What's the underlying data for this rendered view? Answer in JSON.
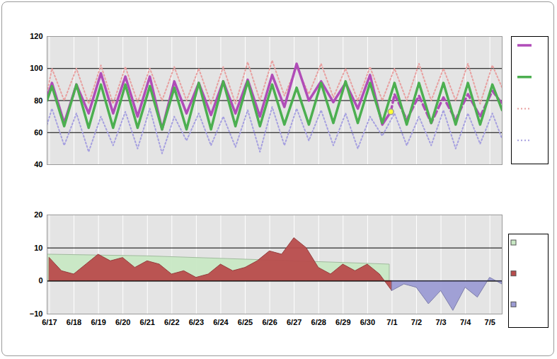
{
  "chart_data": [
    {
      "type": "line",
      "xlim": [
        -0.1,
        18.5
      ],
      "xticks": [
        {
          "value": 0,
          "label": "6/17"
        },
        {
          "value": 1,
          "label": "6/18"
        },
        {
          "value": 2,
          "label": "6/19"
        },
        {
          "value": 3,
          "label": "6/20"
        },
        {
          "value": 4,
          "label": "6/21"
        },
        {
          "value": 5,
          "label": "6/22"
        },
        {
          "value": 6,
          "label": "6/23"
        },
        {
          "value": 7,
          "label": "6/24"
        },
        {
          "value": 8,
          "label": "6/25"
        },
        {
          "value": 9,
          "label": "6/26"
        },
        {
          "value": 10,
          "label": "6/27"
        },
        {
          "value": 11,
          "label": "6/28"
        },
        {
          "value": 12,
          "label": "6/29"
        },
        {
          "value": 13,
          "label": "6/30"
        },
        {
          "value": 14,
          "label": "7/1"
        },
        {
          "value": 15,
          "label": "7/2"
        },
        {
          "value": 16,
          "label": "7/3"
        },
        {
          "value": 17,
          "label": "7/4"
        },
        {
          "value": 18,
          "label": "7/5"
        }
      ],
      "ylim": [
        40,
        120
      ],
      "yticks": [
        40,
        60,
        80,
        100,
        120
      ],
      "grid": true,
      "tick_labels": "y",
      "legend": "right",
      "series": [
        {
          "type": "line",
          "color": "#e8a0a0",
          "line_style": "dotted",
          "x": [
            -0.1,
            0.1,
            0.6,
            1.1,
            1.6,
            2.1,
            2.6,
            3.1,
            3.6,
            4.1,
            4.6,
            5.1,
            5.6,
            6.1,
            6.6,
            7.1,
            7.6,
            8.1,
            8.6,
            9.1,
            9.6,
            10.1,
            10.6,
            11.1,
            11.6,
            12.1,
            12.6,
            13.1,
            13.6,
            14.1,
            14.6,
            15.1,
            15.6,
            16.1,
            16.6,
            17.1,
            17.6,
            18.1,
            18.5
          ],
          "values": [
            85,
            100,
            80,
            100,
            78,
            102,
            78,
            101,
            79,
            100,
            80,
            101,
            80,
            100,
            78,
            101,
            78,
            104,
            80,
            105,
            83,
            101,
            84,
            103,
            82,
            100,
            80,
            101,
            80,
            100,
            80,
            103,
            80,
            100,
            80,
            103,
            78,
            102,
            88
          ]
        },
        {
          "type": "line",
          "color": "#a6a0e0",
          "line_style": "dotted",
          "x": [
            -0.1,
            0.1,
            0.6,
            1.1,
            1.6,
            2.1,
            2.6,
            3.1,
            3.6,
            4.1,
            4.6,
            5.1,
            5.6,
            6.1,
            6.6,
            7.1,
            7.6,
            8.1,
            8.6,
            9.1,
            9.6,
            10.1,
            10.6,
            11.1,
            11.6,
            12.1,
            12.6,
            13.1,
            13.6,
            14.1,
            14.6,
            15.1,
            15.6,
            16.1,
            16.6,
            17.1,
            17.6,
            18.1,
            18.5
          ],
          "values": [
            65,
            75,
            52,
            72,
            48,
            70,
            52,
            73,
            50,
            75,
            47,
            70,
            55,
            72,
            52,
            70,
            51,
            74,
            48,
            76,
            52,
            75,
            55,
            74,
            52,
            72,
            50,
            70,
            58,
            72,
            52,
            70,
            52,
            74,
            50,
            72,
            53,
            72,
            56
          ]
        },
        {
          "type": "line",
          "color": "#b04cb8",
          "line_style": "solid",
          "x": [
            -0.1,
            0.1,
            0.6,
            1.1,
            1.6,
            2.1,
            2.6,
            3.1,
            3.6,
            4.1,
            4.6,
            5.1,
            5.6,
            6.1,
            6.6,
            7.1,
            7.6,
            8.1,
            8.6,
            9.1,
            9.6,
            10.1,
            10.6,
            11.1,
            11.6,
            12.1,
            12.6,
            13.1,
            13.6,
            13.95
          ],
          "values": [
            82,
            91,
            66,
            90,
            72,
            97,
            72,
            95,
            70,
            95,
            62,
            92,
            72,
            91,
            71,
            92,
            72,
            93,
            70,
            96,
            76,
            103,
            80,
            92,
            79,
            91,
            75,
            96,
            65,
            73
          ]
        },
        {
          "type": "line",
          "color": "#b04cb8",
          "line_style": "dashed",
          "x": [
            13.95,
            14.1,
            14.6,
            15.1,
            15.6,
            16.1,
            16.6,
            17.1,
            17.6,
            18.1,
            18.5
          ],
          "values": [
            73,
            84,
            68,
            83,
            66,
            82,
            68,
            84,
            70,
            86,
            78
          ]
        },
        {
          "type": "line",
          "color": "#4caf50",
          "line_style": "solid",
          "x": [
            -0.1,
            0.1,
            0.6,
            1.1,
            1.6,
            2.1,
            2.6,
            3.1,
            3.6,
            4.1,
            4.6,
            5.1,
            5.6,
            6.1,
            6.6,
            7.1,
            7.6,
            8.1,
            8.6,
            9.1,
            9.6,
            10.1,
            10.6,
            11.1,
            11.6,
            12.1,
            12.6,
            13.1,
            13.6,
            14.1,
            14.6,
            15.1,
            15.6,
            16.1,
            16.6,
            17.1,
            17.6,
            18.1,
            18.5
          ],
          "values": [
            80,
            89,
            64,
            90,
            63,
            90,
            63,
            90,
            63,
            89,
            62,
            88,
            62,
            91,
            62,
            92,
            64,
            92,
            64,
            90,
            65,
            88,
            65,
            91,
            66,
            92,
            66,
            91,
            66,
            91,
            65,
            91,
            66,
            91,
            65,
            91,
            65,
            90,
            74
          ]
        },
        {
          "type": "scatter",
          "color": "#ffff33",
          "marker": "circle",
          "x": [
            13.95
          ],
          "values": [
            73
          ]
        }
      ]
    },
    {
      "type": "area",
      "xlim": [
        -0.1,
        18.5
      ],
      "xticks": [
        {
          "value": 0,
          "label": "6/17"
        },
        {
          "value": 1,
          "label": "6/18"
        },
        {
          "value": 2,
          "label": "6/19"
        },
        {
          "value": 3,
          "label": "6/20"
        },
        {
          "value": 4,
          "label": "6/21"
        },
        {
          "value": 5,
          "label": "6/22"
        },
        {
          "value": 6,
          "label": "6/23"
        },
        {
          "value": 7,
          "label": "6/24"
        },
        {
          "value": 8,
          "label": "6/25"
        },
        {
          "value": 9,
          "label": "6/26"
        },
        {
          "value": 10,
          "label": "6/27"
        },
        {
          "value": 11,
          "label": "6/28"
        },
        {
          "value": 12,
          "label": "6/29"
        },
        {
          "value": 13,
          "label": "6/30"
        },
        {
          "value": 14,
          "label": "7/1"
        },
        {
          "value": 15,
          "label": "7/2"
        },
        {
          "value": 16,
          "label": "7/3"
        },
        {
          "value": 17,
          "label": "7/4"
        },
        {
          "value": 18,
          "label": "7/5"
        }
      ],
      "ylim": [
        -10,
        20
      ],
      "yticks": [
        -10,
        0,
        10,
        20
      ],
      "grid": true,
      "legend": "right",
      "series": [
        {
          "type": "area",
          "color": "#c8e8c4",
          "x": [
            -0.1,
            0,
            4,
            8,
            12,
            13.9
          ],
          "values": [
            8,
            8,
            7.5,
            6.5,
            5.5,
            5
          ]
        },
        {
          "type": "area",
          "color": "#b84c4c",
          "x": [
            0,
            0.5,
            1,
            1.5,
            2,
            2.5,
            3,
            3.5,
            4,
            4.5,
            5,
            5.5,
            6,
            6.5,
            7,
            7.5,
            8,
            8.5,
            9,
            9.5,
            10,
            10.5,
            11,
            11.5,
            12,
            12.5,
            13,
            13.5,
            14
          ],
          "values": [
            7,
            3,
            2,
            5,
            8,
            6,
            7,
            4,
            6,
            5,
            2,
            3,
            1,
            2,
            5,
            3,
            4,
            6,
            9,
            8,
            13,
            10,
            4,
            2,
            5,
            3,
            5,
            2,
            -3
          ]
        },
        {
          "type": "area",
          "color": "#9c9cd4",
          "x": [
            14,
            14.5,
            15,
            15.5,
            16,
            16.5,
            17,
            17.5,
            18,
            18.5
          ],
          "values": [
            -3,
            -1,
            -2,
            -7,
            -3,
            -9,
            -2,
            -5,
            1,
            -1
          ]
        }
      ]
    }
  ]
}
